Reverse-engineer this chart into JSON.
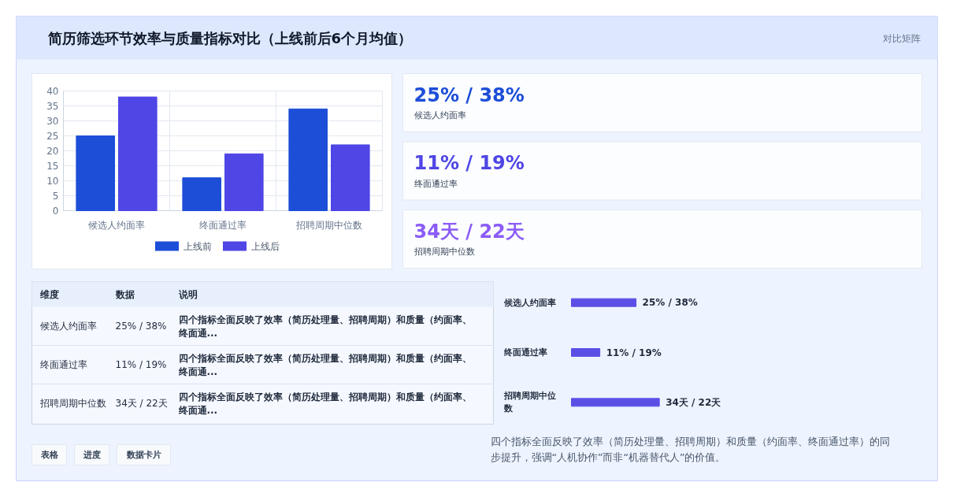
{
  "chart_data": [
    {
      "type": "bar",
      "title": "简历筛选环节效率与质量指标对比（上线前后6个月均值）",
      "annotations": [
        "对比矩阵"
      ],
      "categories": [
        "候选人约面率",
        "终面通过率",
        "招聘周期中位数"
      ],
      "series": [
        {
          "name": "上线前",
          "color": "#1d4ed8",
          "values": [
            25,
            11,
            34
          ]
        },
        {
          "name": "上线后",
          "color": "#4f46e5",
          "values": [
            38,
            19,
            22
          ]
        }
      ],
      "ylim": [
        0,
        40
      ],
      "yticks": [
        0,
        5,
        10,
        15,
        20,
        25,
        30,
        35,
        40
      ],
      "grid": true,
      "legend": "bottom"
    },
    {
      "type": "other",
      "annotations": [
        "25% / 38%",
        "候选人约面率",
        "11% / 19%",
        "终面通过率",
        "34天 / 22天",
        "招聘周期中位数"
      ],
      "colors": [
        "#1d4ed8",
        "#4f46e5",
        "#8b5cf6"
      ]
    },
    {
      "type": "other",
      "annotations": [
        "维度",
        "数据",
        "说明",
        "候选人约面率",
        "25% / 38%",
        "四个指标全面反映了效率（简历处理量、招聘周期）和质量（约面率、终面通...",
        "终面通过率",
        "11% / 19%",
        "四个指标全面反映了效率（简历处理量、招聘周期）和质量（约面率、终面通...",
        "招聘周期中位数",
        "34天 / 22天",
        "四个指标全面反映了效率（简历处理量、招聘周期）和质量（约面率、终面通..."
      ]
    },
    {
      "type": "bar",
      "orientation": "horizontal",
      "categories": [
        "候选人约面率",
        "终面通过率",
        "招聘周期中位数"
      ],
      "values": [
        25,
        11,
        34
      ],
      "value_labels": [
        "25% / 38%",
        "11% / 19%",
        "34天 / 22天"
      ],
      "color": "#5b4fe6",
      "annotations": [
        "四个指标全面反映了效率（简历处理量、招聘周期）和质量（约面率、终面通过率）的同步提升，强调“人机协作”而非“机器替代人”的价值。"
      ]
    },
    {
      "type": "other",
      "annotations": [
        "表格",
        "进度",
        "数据卡片"
      ]
    }
  ]
}
